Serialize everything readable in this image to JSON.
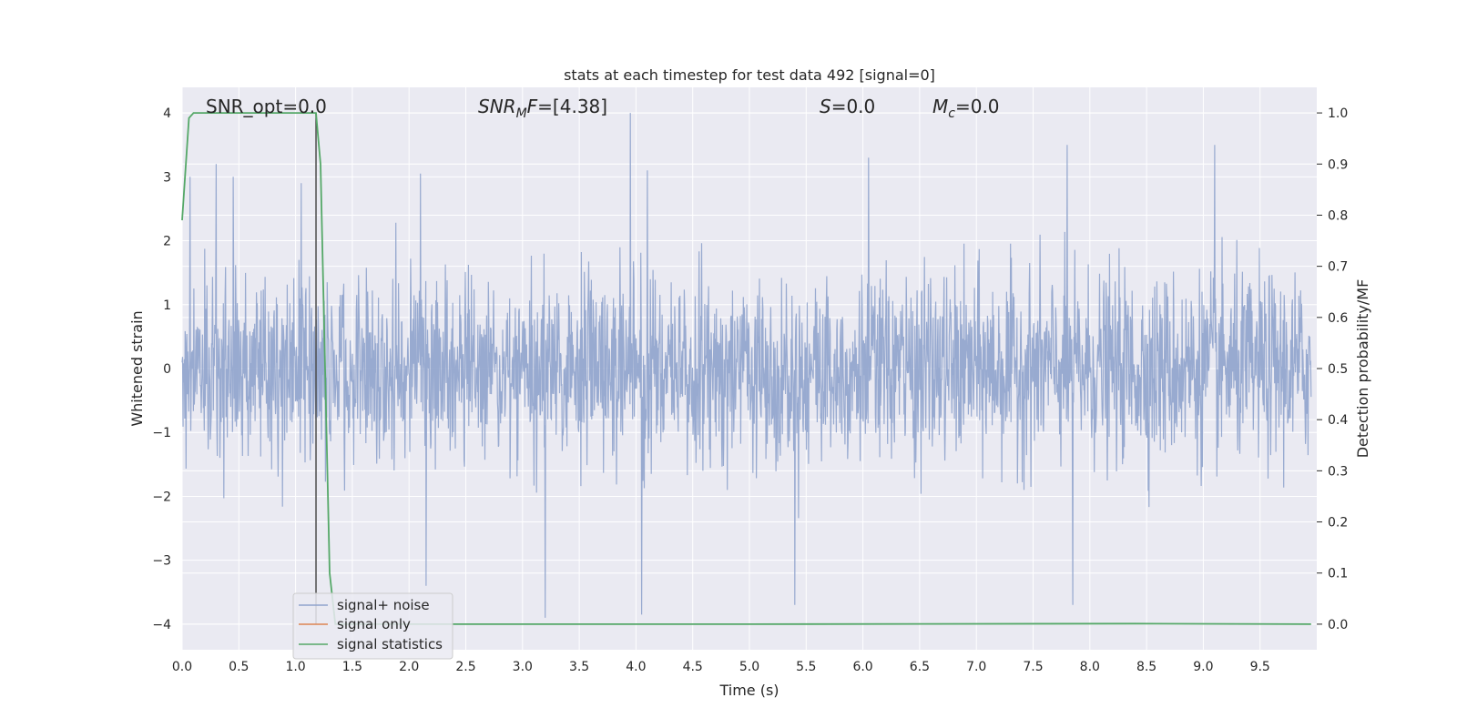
{
  "chart_data": {
    "type": "line",
    "title": "stats at each timestep for test data 492 [signal=0]",
    "xlabel": "Time (s)",
    "ylabel_left": "Whitened strain",
    "ylabel_right": "Detection probability/MF",
    "xlim": [
      0.0,
      10.0
    ],
    "ylim_left": [
      -4.4,
      4.4
    ],
    "ylim_right": [
      -0.05,
      1.05
    ],
    "xticks": [
      "0.0",
      "0.5",
      "1.0",
      "1.5",
      "2.0",
      "2.5",
      "3.0",
      "3.5",
      "4.0",
      "4.5",
      "5.0",
      "5.5",
      "6.0",
      "6.5",
      "7.0",
      "7.5",
      "8.0",
      "8.5",
      "9.0",
      "9.5"
    ],
    "yticks_left": [
      "4",
      "3",
      "2",
      "1",
      "0",
      "−1",
      "−2",
      "−3",
      "−4"
    ],
    "yticks_right": [
      "1.0",
      "0.9",
      "0.8",
      "0.7",
      "0.6",
      "0.5",
      "0.4",
      "0.3",
      "0.2",
      "0.1",
      "0.0"
    ],
    "grid": true,
    "legend_position": "lower-left",
    "annotations": {
      "snr_opt": "SNR_opt=0.0",
      "snr_mf_main": "SNR",
      "snr_mf_sub": "M",
      "snr_mf_f": "F",
      "snr_mf_value": "=[4.38]",
      "s_symbol": "S",
      "s_value": "=0.0",
      "mc_symbol": "M",
      "mc_sub": "c",
      "mc_value": "=0.0"
    },
    "vertical_marker_x": 1.18,
    "series": [
      {
        "name": "signal+ noise",
        "color": "#8fa3cc",
        "axis": "left",
        "description_range": [
          -3.9,
          4.0
        ],
        "peaks": [
          {
            "x": 0.07,
            "y": 3.0
          },
          {
            "x": 0.3,
            "y": 3.2
          },
          {
            "x": 0.45,
            "y": 3.0
          },
          {
            "x": 1.05,
            "y": 2.9
          },
          {
            "x": 2.1,
            "y": 3.05
          },
          {
            "x": 3.95,
            "y": 4.0
          },
          {
            "x": 4.1,
            "y": 3.1
          },
          {
            "x": 6.05,
            "y": 3.3
          },
          {
            "x": 7.8,
            "y": 3.5
          },
          {
            "x": 9.1,
            "y": 3.5
          },
          {
            "x": 3.2,
            "y": -3.9
          },
          {
            "x": 4.05,
            "y": -3.85
          },
          {
            "x": 5.4,
            "y": -3.7
          },
          {
            "x": 7.85,
            "y": -3.7
          },
          {
            "x": 2.15,
            "y": -3.4
          }
        ]
      },
      {
        "name": "signal only",
        "color": "#dd8452",
        "axis": "left",
        "x": [
          0.0,
          9.95
        ],
        "y": [
          0.0,
          0.0
        ]
      },
      {
        "name": "signal statistics",
        "color": "#55a868",
        "axis": "right",
        "x": [
          0.0,
          0.06,
          0.1,
          0.2,
          1.0,
          1.18,
          1.22,
          1.26,
          1.3,
          1.35,
          2.0,
          5.0,
          8.4,
          9.95
        ],
        "y": [
          0.79,
          0.99,
          1.0,
          1.0,
          1.0,
          1.0,
          0.9,
          0.5,
          0.1,
          0.0,
          0.0,
          0.0,
          0.001,
          0.0
        ]
      }
    ]
  }
}
